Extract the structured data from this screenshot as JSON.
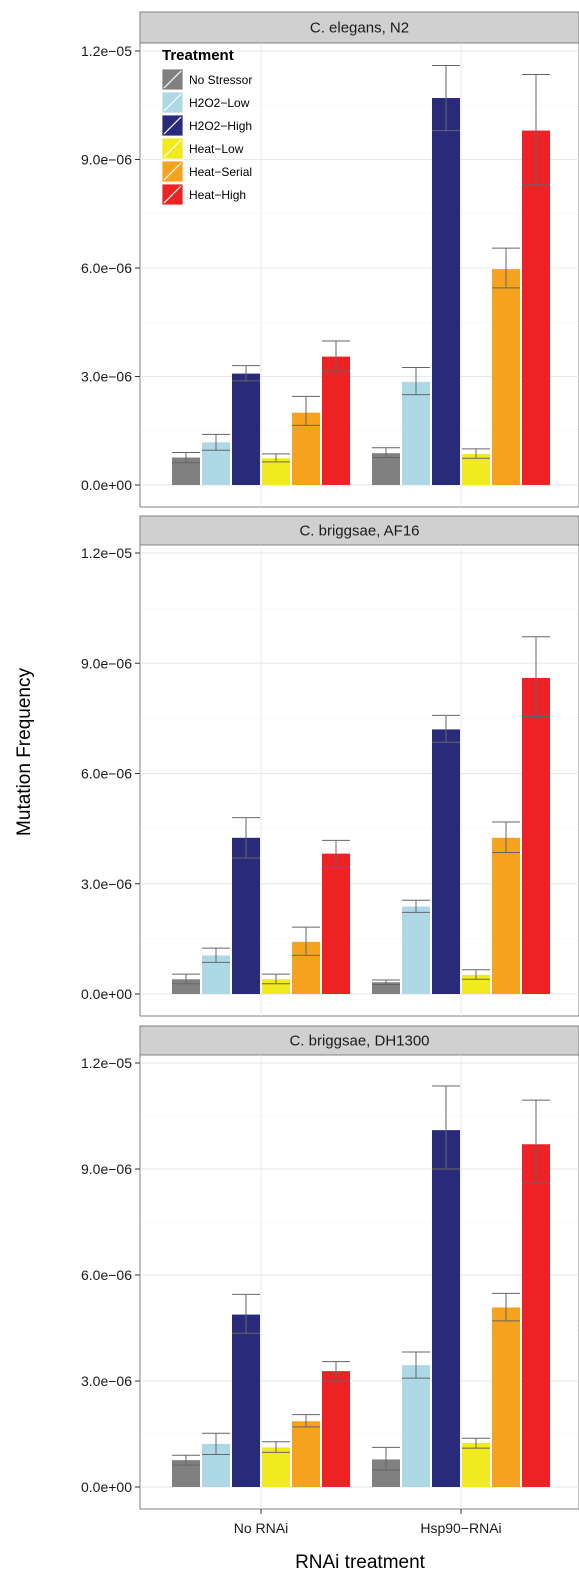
{
  "chart_data": {
    "type": "bar",
    "xlabel": "RNAi treatment",
    "ylabel": "Mutation Frequency",
    "categories": [
      "No RNAi",
      "Hsp90−RNAi"
    ],
    "ylim": [
      0,
      1.2e-05
    ],
    "yticks": [
      0,
      3e-06,
      6e-06,
      9e-06,
      1.2e-05
    ],
    "ytick_labels": [
      "0.0e+00",
      "3.0e−06",
      "6.0e−06",
      "9.0e−06",
      "1.2e−05"
    ],
    "grid": true,
    "legend": {
      "title": "Treatment",
      "placement": "top-left",
      "entries": [
        {
          "name": "No Stressor",
          "color": "#808080"
        },
        {
          "name": "H2O2−Low",
          "color": "#aed8e6"
        },
        {
          "name": "H2O2−High",
          "color": "#2a2a7a"
        },
        {
          "name": "Heat−Low",
          "color": "#f0ea1e"
        },
        {
          "name": "Heat−Serial",
          "color": "#f5a21e"
        },
        {
          "name": "Heat−High",
          "color": "#ec2224"
        }
      ]
    },
    "panels": [
      {
        "title": "C. elegans, N2",
        "series": [
          {
            "name": "No Stressor",
            "values": [
              7.6e-07,
              8.8e-07
            ],
            "err_low": [
              6.2e-07,
              7.6e-07
            ],
            "err_high": [
              9e-07,
              1.03e-06
            ]
          },
          {
            "name": "H2O2−Low",
            "values": [
              1.18e-06,
              2.85e-06
            ],
            "err_low": [
              9.6e-07,
              2.5e-06
            ],
            "err_high": [
              1.4e-06,
              3.25e-06
            ]
          },
          {
            "name": "H2O2−High",
            "values": [
              3.08e-06,
              1.07e-05
            ],
            "err_low": [
              2.88e-06,
              9.8e-06
            ],
            "err_high": [
              3.3e-06,
              1.16e-05
            ]
          },
          {
            "name": "Heat−Low",
            "values": [
              7.4e-07,
              8.6e-07
            ],
            "err_low": [
              6.4e-07,
              7.4e-07
            ],
            "err_high": [
              8.6e-07,
              1e-06
            ]
          },
          {
            "name": "Heat−Serial",
            "values": [
              2e-06,
              5.97e-06
            ],
            "err_low": [
              1.65e-06,
              5.45e-06
            ],
            "err_high": [
              2.45e-06,
              6.55e-06
            ]
          },
          {
            "name": "Heat−High",
            "values": [
              3.55e-06,
              9.8e-06
            ],
            "err_low": [
              3.15e-06,
              8.3e-06
            ],
            "err_high": [
              3.98e-06,
              1.135e-05
            ]
          }
        ]
      },
      {
        "title": "C. briggsae, AF16",
        "series": [
          {
            "name": "No Stressor",
            "values": [
              4e-07,
              3.2e-07
            ],
            "err_low": [
              2.8e-07,
              2.6e-07
            ],
            "err_high": [
              5.4e-07,
              3.8e-07
            ]
          },
          {
            "name": "H2O2−Low",
            "values": [
              1.05e-06,
              2.38e-06
            ],
            "err_low": [
              8.6e-07,
              2.22e-06
            ],
            "err_high": [
              1.25e-06,
              2.55e-06
            ]
          },
          {
            "name": "H2O2−High",
            "values": [
              4.25e-06,
              7.2e-06
            ],
            "err_low": [
              3.7e-06,
              6.85e-06
            ],
            "err_high": [
              4.8e-06,
              7.58e-06
            ]
          },
          {
            "name": "Heat−Low",
            "values": [
              4e-07,
              5.2e-07
            ],
            "err_low": [
              2.8e-07,
              4e-07
            ],
            "err_high": [
              5.4e-07,
              6.6e-07
            ]
          },
          {
            "name": "Heat−Serial",
            "values": [
              1.42e-06,
              4.25e-06
            ],
            "err_low": [
              1.05e-06,
              3.85e-06
            ],
            "err_high": [
              1.82e-06,
              4.68e-06
            ]
          },
          {
            "name": "Heat−High",
            "values": [
              3.82e-06,
              8.6e-06
            ],
            "err_low": [
              3.45e-06,
              7.55e-06
            ],
            "err_high": [
              4.18e-06,
              9.72e-06
            ]
          }
        ]
      },
      {
        "title": "C. briggsae, DH1300",
        "series": [
          {
            "name": "No Stressor",
            "values": [
              7.6e-07,
              7.8e-07
            ],
            "err_low": [
              6.2e-07,
              4.8e-07
            ],
            "err_high": [
              9e-07,
              1.12e-06
            ]
          },
          {
            "name": "H2O2−Low",
            "values": [
              1.22e-06,
              3.45e-06
            ],
            "err_low": [
              9.2e-07,
              3.08e-06
            ],
            "err_high": [
              1.52e-06,
              3.82e-06
            ]
          },
          {
            "name": "H2O2−High",
            "values": [
              4.88e-06,
              1.01e-05
            ],
            "err_low": [
              4.35e-06,
              9e-06
            ],
            "err_high": [
              5.45e-06,
              1.135e-05
            ]
          },
          {
            "name": "Heat−Low",
            "values": [
              1.12e-06,
              1.25e-06
            ],
            "err_low": [
              9.8e-07,
              1.1e-06
            ],
            "err_high": [
              1.28e-06,
              1.38e-06
            ]
          },
          {
            "name": "Heat−Serial",
            "values": [
              1.86e-06,
              5.08e-06
            ],
            "err_low": [
              1.7e-06,
              4.7e-06
            ],
            "err_high": [
              2.05e-06,
              5.48e-06
            ]
          },
          {
            "name": "Heat−High",
            "values": [
              3.28e-06,
              9.7e-06
            ],
            "err_low": [
              3e-06,
              8.6e-06
            ],
            "err_high": [
              3.55e-06,
              1.095e-05
            ]
          }
        ]
      }
    ]
  }
}
